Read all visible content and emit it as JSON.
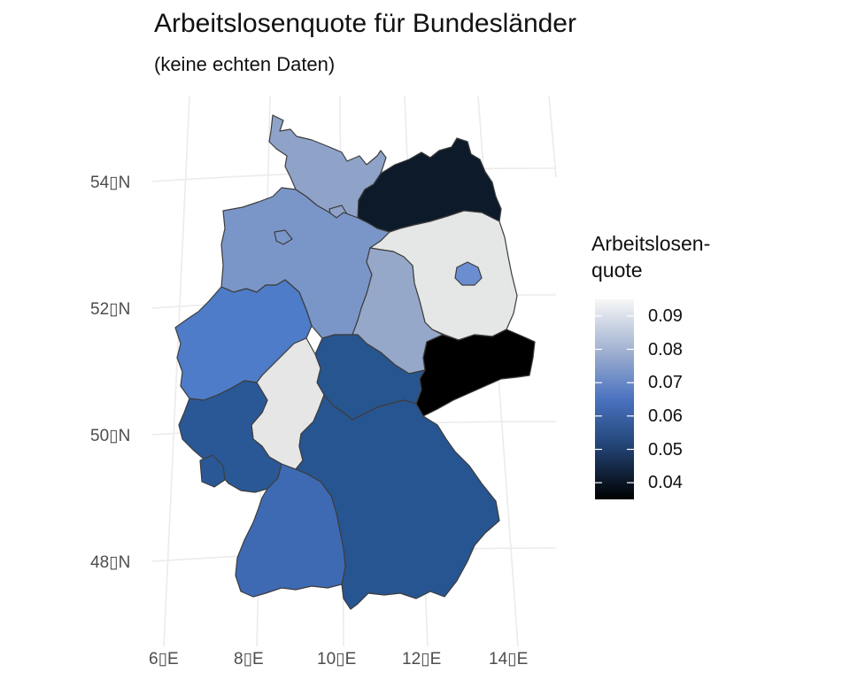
{
  "title": "Arbeitslosenquote für Bundesländer",
  "subtitle": "(keine echten Daten)",
  "legend": {
    "title_line1": "Arbeitslosen-",
    "title_line2": "quote",
    "colors": {
      "high": "#f7f7f7",
      "mid": "#4a72bf",
      "low": "#000000"
    },
    "ticks": [
      "0.09",
      "0.08",
      "0.07",
      "0.06",
      "0.05",
      "0.04"
    ],
    "range": [
      0.035,
      0.095
    ]
  },
  "axes": {
    "lat_labels": [
      "54▯N",
      "52▯N",
      "50▯N",
      "48▯N"
    ],
    "lon_labels": [
      "6▯E",
      "8▯E",
      "10▯E",
      "12▯E",
      "14▯E"
    ]
  },
  "states": [
    {
      "id": "schleswig-holstein",
      "value": 0.073,
      "color": "#8fa3c9"
    },
    {
      "id": "hamburg",
      "value": 0.072,
      "color": "#8fa3c9"
    },
    {
      "id": "mecklenburg-vorpommern",
      "value": 0.042,
      "color": "#0d1a2a"
    },
    {
      "id": "niedersachsen",
      "value": 0.068,
      "color": "#7a96c9"
    },
    {
      "id": "bremen",
      "value": 0.068,
      "color": "#7a96c9"
    },
    {
      "id": "berlin",
      "value": 0.064,
      "color": "#6b8ed1"
    },
    {
      "id": "brandenburg",
      "value": 0.09,
      "color": "#e5e6e6"
    },
    {
      "id": "sachsen-anhalt",
      "value": 0.075,
      "color": "#96a8c9"
    },
    {
      "id": "nordrhein-westfalen",
      "value": 0.061,
      "color": "#4f7cc8"
    },
    {
      "id": "sachsen",
      "value": 0.036,
      "color": "#000000"
    },
    {
      "id": "thueringen",
      "value": 0.054,
      "color": "#27558f"
    },
    {
      "id": "hessen",
      "value": 0.091,
      "color": "#e6e6e6"
    },
    {
      "id": "rheinland-pfalz",
      "value": 0.054,
      "color": "#2a5896"
    },
    {
      "id": "saarland",
      "value": 0.054,
      "color": "#2a5896"
    },
    {
      "id": "bayern",
      "value": 0.054,
      "color": "#275591"
    },
    {
      "id": "baden-wuerttemberg",
      "value": 0.061,
      "color": "#3e6ab4"
    }
  ]
}
